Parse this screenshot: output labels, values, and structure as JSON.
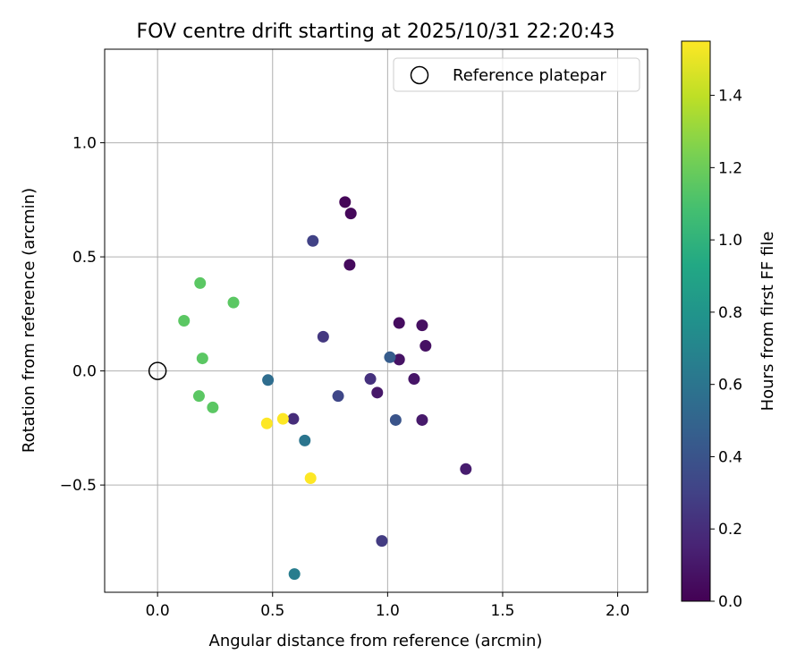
{
  "chart_data": {
    "type": "scatter",
    "title": "FOV centre drift starting at 2025/10/31 22:20:43",
    "xlabel": "Angular distance from reference (arcmin)",
    "ylabel": "Rotation from reference (arcmin)",
    "xlim": [
      -0.23,
      2.13
    ],
    "ylim": [
      -0.97,
      1.41
    ],
    "xticks": [
      0.0,
      0.5,
      1.0,
      1.5,
      2.0
    ],
    "xtick_labels": [
      "0.0",
      "0.5",
      "1.0",
      "1.5",
      "2.0"
    ],
    "yticks": [
      -0.5,
      0.0,
      0.5,
      1.0
    ],
    "ytick_labels": [
      "−0.5",
      "0.0",
      "0.5",
      "1.0"
    ],
    "grid": true,
    "legend": {
      "position": "top-right",
      "entries": [
        "Reference platepar"
      ]
    },
    "reference": {
      "x": 0.0,
      "y": 0.0,
      "label": "Reference platepar"
    },
    "colorbar": {
      "label": "Hours from first FF file",
      "colormap": "viridis",
      "range": [
        0.0,
        1.55
      ],
      "ticks": [
        0.0,
        0.2,
        0.4,
        0.6,
        0.8,
        1.0,
        1.2,
        1.4
      ],
      "tick_labels": [
        "0.0",
        "0.2",
        "0.4",
        "0.6",
        "0.8",
        "1.0",
        "1.2",
        "1.4"
      ]
    },
    "points": [
      {
        "x": 0.815,
        "y": 0.74,
        "hours": 0.02
      },
      {
        "x": 0.84,
        "y": 0.69,
        "hours": 0.03
      },
      {
        "x": 0.835,
        "y": 0.465,
        "hours": 0.04
      },
      {
        "x": 1.05,
        "y": 0.21,
        "hours": 0.05
      },
      {
        "x": 1.15,
        "y": 0.2,
        "hours": 0.06
      },
      {
        "x": 1.165,
        "y": 0.11,
        "hours": 0.07
      },
      {
        "x": 1.05,
        "y": 0.05,
        "hours": 0.08
      },
      {
        "x": 1.115,
        "y": -0.035,
        "hours": 0.09
      },
      {
        "x": 0.955,
        "y": -0.095,
        "hours": 0.1
      },
      {
        "x": 1.15,
        "y": -0.215,
        "hours": 0.11
      },
      {
        "x": 1.34,
        "y": -0.43,
        "hours": 0.12
      },
      {
        "x": 0.59,
        "y": -0.21,
        "hours": 0.2
      },
      {
        "x": 0.925,
        "y": -0.035,
        "hours": 0.22
      },
      {
        "x": 0.72,
        "y": 0.15,
        "hours": 0.25
      },
      {
        "x": 0.975,
        "y": -0.745,
        "hours": 0.27
      },
      {
        "x": 0.675,
        "y": 0.57,
        "hours": 0.3
      },
      {
        "x": 0.785,
        "y": -0.11,
        "hours": 0.33
      },
      {
        "x": 1.035,
        "y": -0.215,
        "hours": 0.4
      },
      {
        "x": 1.01,
        "y": 0.06,
        "hours": 0.45
      },
      {
        "x": 0.48,
        "y": -0.04,
        "hours": 0.55
      },
      {
        "x": 0.64,
        "y": -0.305,
        "hours": 0.6
      },
      {
        "x": 0.595,
        "y": -0.89,
        "hours": 0.65
      },
      {
        "x": 0.115,
        "y": 0.22,
        "hours": 1.15
      },
      {
        "x": 0.185,
        "y": 0.385,
        "hours": 1.15
      },
      {
        "x": 0.33,
        "y": 0.3,
        "hours": 1.15
      },
      {
        "x": 0.195,
        "y": 0.055,
        "hours": 1.15
      },
      {
        "x": 0.18,
        "y": -0.11,
        "hours": 1.15
      },
      {
        "x": 0.24,
        "y": -0.16,
        "hours": 1.15
      },
      {
        "x": 0.475,
        "y": -0.23,
        "hours": 1.55
      },
      {
        "x": 0.545,
        "y": -0.21,
        "hours": 1.55
      },
      {
        "x": 0.665,
        "y": -0.47,
        "hours": 1.55
      }
    ]
  }
}
